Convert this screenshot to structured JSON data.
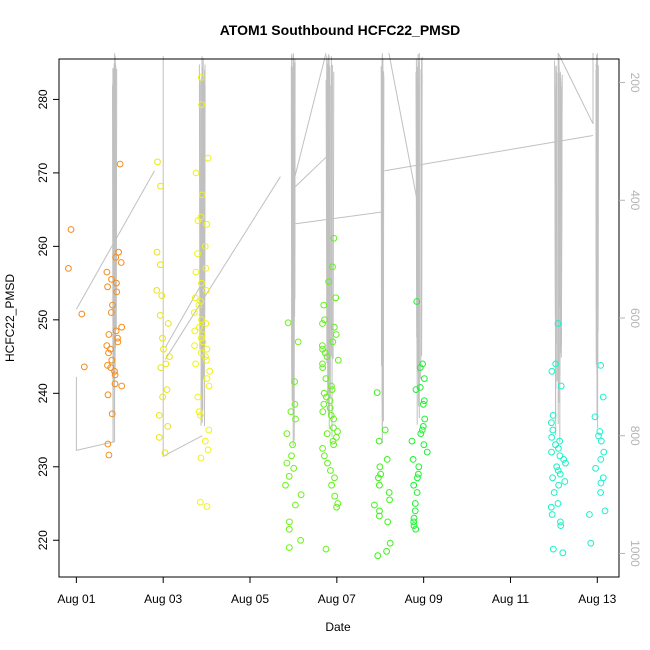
{
  "chart_data": {
    "type": "scatter",
    "title": "ATOM1 Southbound HCFC22_PMSD",
    "xlabel": "Date",
    "ylabel": "HCFC22_PMSD",
    "x_ticks": [
      "Aug 01",
      "Aug 03",
      "Aug 05",
      "Aug 07",
      "Aug 09",
      "Aug 11",
      "Aug 13"
    ],
    "x_tick_days": [
      1,
      3,
      5,
      7,
      9,
      11,
      13
    ],
    "xlim_days": [
      0.6,
      13.5
    ],
    "ylim": [
      215,
      285.5
    ],
    "y_ticks": [
      220,
      230,
      240,
      250,
      260,
      270,
      280
    ],
    "y2_ticks": [
      200,
      400,
      600,
      800,
      1000
    ],
    "y2lim": [
      1040,
      160
    ],
    "colors": {
      "axis": "#000000",
      "pressure_line": "#c0c0c0",
      "secondary_ticks": "#b4b4b4"
    },
    "groups": [
      {
        "day": 1.0,
        "color": "#f28a1a",
        "values": [
          262.3,
          257.0,
          250.8,
          243.6
        ]
      },
      {
        "day": 1.88,
        "color": "#f58c19",
        "values": [
          271.2,
          259.2,
          258.5,
          257.8,
          256.5,
          255.5,
          255.0,
          254.5,
          253.8,
          252.0,
          251.0,
          249.0,
          248.5,
          248.0,
          247.5,
          247.0,
          246.5,
          246.0,
          245.5,
          244.5,
          243.8,
          243.5,
          243.0,
          242.5,
          241.3,
          241.0,
          239.8,
          237.2,
          233.1,
          231.6
        ]
      },
      {
        "day": 3.0,
        "color": "#e9e41c",
        "values": [
          271.5,
          268.2,
          259.2,
          257.5,
          254.0,
          253.3,
          250.6,
          249.5,
          247.5,
          246.0,
          245.0,
          244.0,
          243.5,
          240.5,
          239.5,
          237.0,
          235.5,
          234.0,
          231.9
        ]
      },
      {
        "day": 3.9,
        "color": "#eff21a",
        "values": [
          283.0,
          279.3,
          272.0,
          270.0,
          267.0,
          264.0,
          263.5,
          263.0,
          260.0,
          259.0,
          257.0,
          256.5,
          255.0,
          254.0,
          253.0,
          252.5,
          252.0,
          251.0,
          250.0,
          249.5,
          249.0,
          248.5,
          248.0,
          247.5,
          247.0,
          246.5,
          246.0,
          245.5,
          245.0,
          244.5,
          244.0,
          243.0,
          242.0,
          241.0,
          239.5,
          237.5,
          237.0,
          235.0,
          233.5,
          232.3,
          231.2,
          225.2,
          224.6
        ]
      },
      {
        "day": 6.0,
        "color": "#6ef21a",
        "values": [
          249.6,
          247.0,
          241.6,
          238.5,
          237.5,
          236.5,
          234.5,
          233.0,
          231.5,
          230.5,
          229.8,
          228.7,
          227.5,
          226.2,
          224.8,
          222.5,
          221.5,
          220.0,
          219.0
        ]
      },
      {
        "day": 6.85,
        "color": "#62f21a",
        "values": [
          261.1,
          257.2,
          255.2,
          253.0,
          252.0,
          250.0,
          249.5,
          249.0,
          248.0,
          247.0,
          246.5,
          246.0,
          245.5,
          245.0,
          244.5,
          244.0,
          243.5,
          242.0,
          241.0,
          240.5,
          240.0,
          239.5,
          239.0,
          238.5,
          238.0,
          237.5,
          237.0,
          236.5,
          235.3,
          234.8,
          234.5,
          234.0,
          233.5,
          233.0,
          232.5,
          231.5,
          230.5,
          229.5,
          228.5,
          227.5,
          226.0,
          225.0,
          224.5,
          218.8
        ]
      },
      {
        "day": 8.05,
        "color": "#3ef21a",
        "values": [
          240.1,
          235.0,
          233.5,
          231.0,
          230.0,
          229.0,
          228.5,
          227.5,
          226.5,
          225.5,
          224.8,
          224.0,
          223.3,
          222.5,
          219.6,
          218.5,
          217.9
        ]
      },
      {
        "day": 8.9,
        "color": "#1ef232",
        "values": [
          252.5,
          244.0,
          243.5,
          242.0,
          240.8,
          240.5,
          239.0,
          238.5,
          236.5,
          235.5,
          235.0,
          234.5,
          233.5,
          233.0,
          232.0,
          231.0,
          230.0,
          229.0,
          228.5,
          227.5,
          226.5,
          225.0,
          224.0,
          223.0,
          222.5,
          222.0,
          221.5
        ]
      },
      {
        "day": 12.1,
        "color": "#1af2c4",
        "values": [
          249.5,
          244.0,
          243.0,
          241.0,
          237.0,
          236.0,
          235.0,
          234.0,
          233.5,
          233.0,
          232.5,
          232.0,
          231.5,
          231.0,
          230.5,
          230.0,
          229.5,
          229.0,
          228.5,
          228.0,
          227.5,
          226.5,
          225.0,
          224.5,
          223.5,
          222.5,
          222.0,
          218.8,
          218.3
        ]
      },
      {
        "day": 13.0,
        "color": "#1af2cf",
        "values": [
          243.8,
          239.5,
          236.8,
          234.8,
          234.2,
          233.5,
          232.0,
          231.0,
          229.8,
          228.5,
          227.8,
          226.5,
          224.0,
          223.5,
          219.6
        ]
      }
    ]
  }
}
